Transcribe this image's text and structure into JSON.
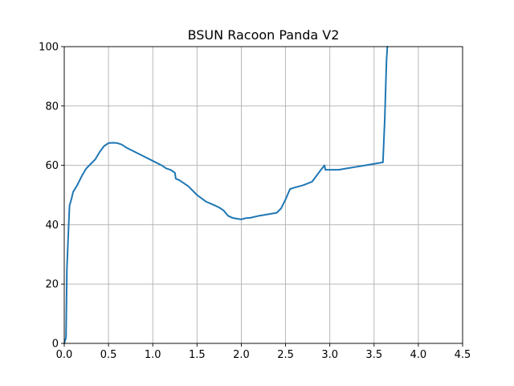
{
  "chart_data": {
    "type": "line",
    "title": "BSUN Racoon Panda V2",
    "xlabel": "",
    "ylabel": "",
    "xlim": [
      0.0,
      4.5
    ],
    "ylim": [
      0,
      100
    ],
    "xticks": [
      0.0,
      0.5,
      1.0,
      1.5,
      2.0,
      2.5,
      3.0,
      3.5,
      4.0,
      4.5
    ],
    "xtick_labels": [
      "0.0",
      "0.5",
      "1.0",
      "1.5",
      "2.0",
      "2.5",
      "3.0",
      "3.5",
      "4.0",
      "4.5"
    ],
    "yticks": [
      0,
      20,
      40,
      60,
      80,
      100
    ],
    "ytick_labels": [
      "0",
      "20",
      "40",
      "60",
      "80",
      "100"
    ],
    "grid": true,
    "legend": "none",
    "series": [
      {
        "color": "#1f77b4",
        "x": [
          0.0,
          0.02,
          0.03,
          0.05,
          0.06,
          0.08,
          0.1,
          0.15,
          0.2,
          0.25,
          0.3,
          0.35,
          0.4,
          0.45,
          0.5,
          0.55,
          0.6,
          0.65,
          0.7,
          0.8,
          0.9,
          1.0,
          1.1,
          1.15,
          1.2,
          1.25,
          1.26,
          1.3,
          1.4,
          1.5,
          1.6,
          1.7,
          1.75,
          1.8,
          1.85,
          1.9,
          1.95,
          2.0,
          2.05,
          2.1,
          2.2,
          2.3,
          2.4,
          2.45,
          2.5,
          2.55,
          2.6,
          2.7,
          2.8,
          2.85,
          2.9,
          2.94,
          2.95,
          3.0,
          3.1,
          3.2,
          3.3,
          3.4,
          3.5,
          3.6,
          3.62,
          3.64,
          3.65
        ],
        "y": [
          0,
          2,
          25,
          40,
          46.5,
          48.5,
          51,
          53.5,
          56.5,
          59,
          60.5,
          62,
          64.5,
          66.5,
          67.5,
          67.6,
          67.5,
          67,
          66,
          64.5,
          63,
          61.5,
          60,
          59,
          58.5,
          57.5,
          55.5,
          55,
          53,
          50,
          47.8,
          46.5,
          45.8,
          44.8,
          43,
          42.3,
          42,
          41.8,
          42.2,
          42.3,
          43,
          43.5,
          44,
          45.5,
          48.5,
          52,
          52.5,
          53.3,
          54.5,
          56.5,
          58.5,
          60,
          58.5,
          58.5,
          58.5,
          59,
          59.5,
          60,
          60.5,
          61,
          75,
          95,
          100
        ]
      }
    ]
  }
}
